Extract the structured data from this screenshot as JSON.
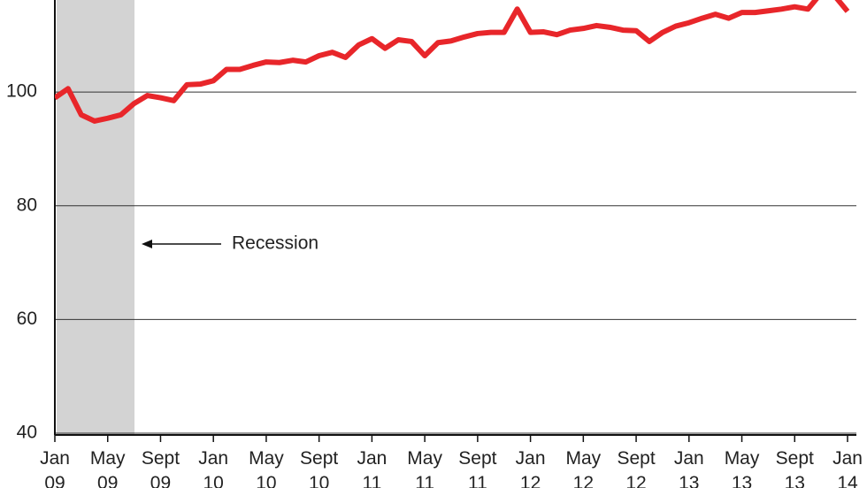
{
  "chart_data": {
    "type": "line",
    "categories": [
      "Jan 09",
      null,
      null,
      null,
      "May 09",
      null,
      null,
      null,
      "Sept 09",
      null,
      null,
      null,
      "Jan 10",
      null,
      null,
      null,
      "May 10",
      null,
      null,
      null,
      "Sept 10",
      null,
      null,
      null,
      "Jan 11",
      null,
      null,
      null,
      "May 11",
      null,
      null,
      null,
      "Sept 11",
      null,
      null,
      null,
      "Jan 12",
      null,
      null,
      null,
      "May 12",
      null,
      null,
      null,
      "Sept 12",
      null,
      null,
      null,
      "Jan 13",
      null,
      null,
      null,
      "May 13",
      null,
      null,
      null,
      "Sept 13",
      null,
      null,
      null,
      "Jan 14"
    ],
    "series": [
      {
        "color": "#e8262a",
        "values": [
          99,
          100.6,
          96,
          94.9,
          95.4,
          96,
          98,
          99.4,
          99,
          98.5,
          101.3,
          101.4,
          102,
          104,
          104,
          104.7,
          105.3,
          105.2,
          105.6,
          105.3,
          106.4,
          107,
          106.1,
          108.3,
          109.4,
          107.7,
          109.2,
          108.9,
          106.4,
          108.7,
          109,
          109.7,
          110.3,
          110.5,
          110.5,
          114.6,
          110.5,
          110.6,
          110.1,
          110.9,
          111.2,
          111.7,
          111.4,
          110.9,
          110.8,
          108.9,
          110.5,
          111.6,
          112.2,
          113,
          113.7,
          113,
          114,
          114,
          114.3,
          114.6,
          115,
          114.6,
          117.4,
          117,
          114.2
        ]
      }
    ],
    "ylim": [
      40,
      116.2
    ],
    "yticks": [
      40,
      60,
      80,
      100
    ],
    "grid": true,
    "annotations": [
      {
        "text": "Recession"
      }
    ]
  }
}
